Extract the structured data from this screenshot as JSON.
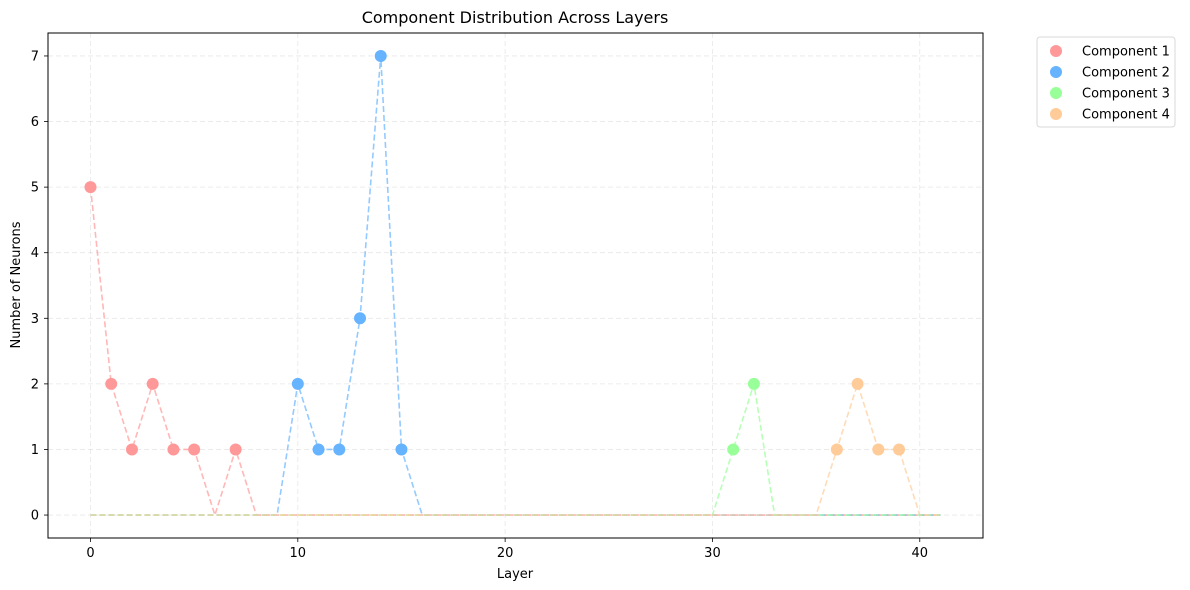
{
  "chart_data": {
    "type": "line",
    "title": "Component Distribution Across Layers",
    "xlabel": "Layer",
    "ylabel": "Number of Neurons",
    "xlim": [
      -2.05,
      43.05
    ],
    "ylim": [
      -0.35,
      7.35
    ],
    "xticks": [
      0,
      10,
      20,
      30,
      40
    ],
    "yticks": [
      0,
      1,
      2,
      3,
      4,
      5,
      6,
      7
    ],
    "grid": true,
    "legend_position": "outside-top-right",
    "line_style": "dashed",
    "series": [
      {
        "name": "Component 1",
        "color": "#ff9999",
        "values": [
          5,
          2,
          1,
          2,
          1,
          1,
          0,
          1,
          0,
          0,
          0,
          0,
          0,
          0,
          0,
          0,
          0,
          0,
          0,
          0,
          0,
          0,
          0,
          0,
          0,
          0,
          0,
          0,
          0,
          0,
          0,
          0,
          0,
          0,
          0,
          0,
          0,
          0,
          0,
          0,
          0,
          0
        ],
        "marker_layers": [
          0,
          1,
          2,
          3,
          4,
          5,
          7
        ]
      },
      {
        "name": "Component 2",
        "color": "#66b3ff",
        "values": [
          0,
          0,
          0,
          0,
          0,
          0,
          0,
          0,
          0,
          0,
          2,
          1,
          1,
          3,
          7,
          1,
          0,
          0,
          0,
          0,
          0,
          0,
          0,
          0,
          0,
          0,
          0,
          0,
          0,
          0,
          0,
          0,
          0,
          0,
          0,
          0,
          0,
          0,
          0,
          0,
          0,
          0
        ],
        "marker_layers": [
          10,
          11,
          12,
          13,
          14,
          15
        ]
      },
      {
        "name": "Component 3",
        "color": "#99ff99",
        "values": [
          0,
          0,
          0,
          0,
          0,
          0,
          0,
          0,
          0,
          0,
          0,
          0,
          0,
          0,
          0,
          0,
          0,
          0,
          0,
          0,
          0,
          0,
          0,
          0,
          0,
          0,
          0,
          0,
          0,
          0,
          0,
          1,
          2,
          0,
          0,
          0,
          0,
          0,
          0,
          0,
          0,
          0
        ],
        "marker_layers": [
          31,
          32
        ]
      },
      {
        "name": "Component 4",
        "color": "#ffcc99",
        "values": [
          0,
          0,
          0,
          0,
          0,
          0,
          0,
          0,
          0,
          0,
          0,
          0,
          0,
          0,
          0,
          0,
          0,
          0,
          0,
          0,
          0,
          0,
          0,
          0,
          0,
          0,
          0,
          0,
          0,
          0,
          0,
          0,
          0,
          0,
          0,
          0,
          1,
          2,
          1,
          1,
          0,
          0
        ],
        "marker_layers": [
          36,
          37,
          38,
          39
        ]
      }
    ]
  }
}
